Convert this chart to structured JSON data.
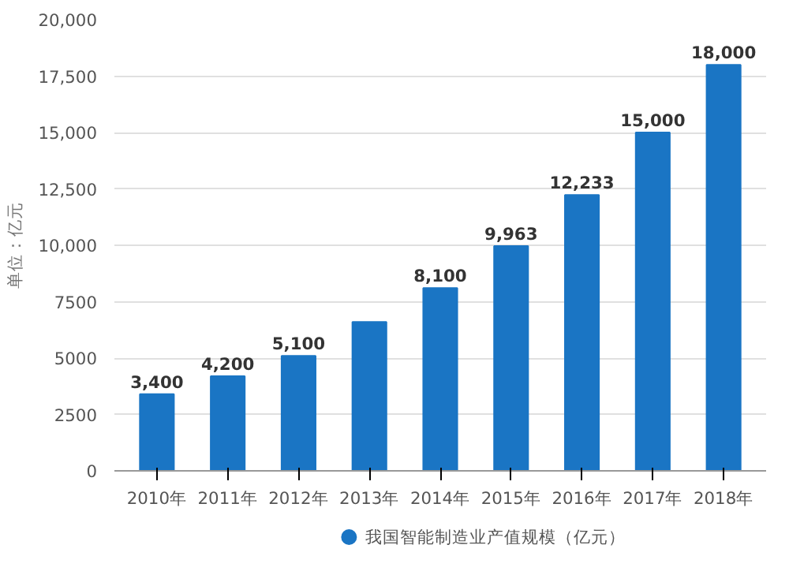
{
  "chart_data": {
    "type": "bar",
    "ylabel": "单位：亿元",
    "categories": [
      "2010年",
      "2011年",
      "2012年",
      "2013年",
      "2014年",
      "2015年",
      "2016年",
      "2017年",
      "2018年"
    ],
    "series": [
      {
        "name": "我国智能制造业产值规模（亿元）",
        "color": "#1a75c4",
        "values": [
          3400,
          4200,
          5100,
          6600,
          8100,
          9963,
          12233,
          15000,
          18000
        ]
      }
    ],
    "value_labels": [
      "3,400",
      "4,200",
      "5,100",
      null,
      "8,100",
      "9,963",
      "12,233",
      "15,000",
      "18,000"
    ],
    "ylim": [
      0,
      20000
    ],
    "yticks": [
      0,
      2500,
      5000,
      7500,
      {
        "value": 10000,
        "label": "10,000"
      },
      {
        "value": 12500,
        "label": "12,500"
      },
      {
        "value": 15000,
        "label": "15,000"
      },
      {
        "value": 17500,
        "label": "17,500"
      },
      {
        "value": 20000,
        "label": "20,000"
      }
    ],
    "grid": "y",
    "legend": "bottom",
    "marker": "circle"
  }
}
